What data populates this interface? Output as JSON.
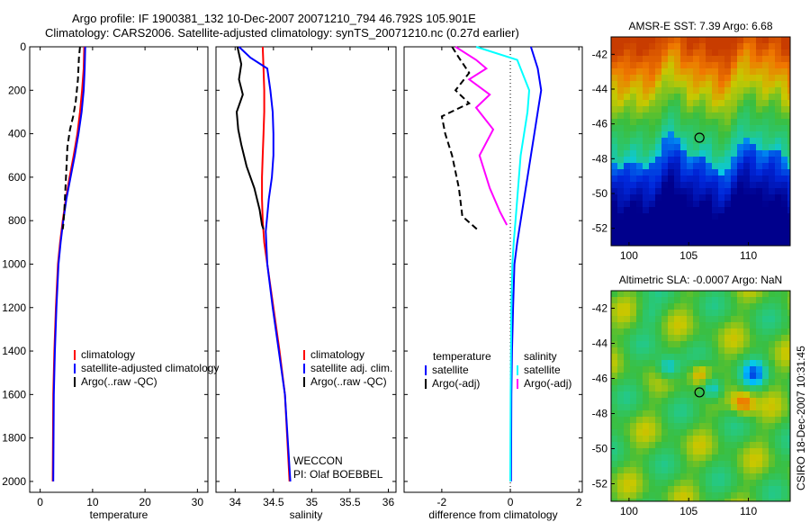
{
  "header": {
    "line1": "Argo profile: IF 1900381_132 10-Dec-2007 20071210_794 46.792S 105.901E",
    "line2": "Climatology: CARS2006. Satellite-adjusted climatology: synTS_20071210.nc (0.27d earlier)"
  },
  "side_label": "CSIRO 18-Dec-2007 10:31:45",
  "colors": {
    "climatology": "#ff0000",
    "satellite": "#0000ff",
    "argo": "#000000",
    "satellite_diff": "#00ffff",
    "argo_sal_diff": "#ff00ff"
  },
  "chart_data": [
    {
      "type": "line",
      "panel": "temperature",
      "xlabel": "temperature",
      "ylabel": "",
      "xlim": [
        -2,
        32
      ],
      "ylim": [
        2050,
        0
      ],
      "xticks": [
        0,
        10,
        20,
        30
      ],
      "yticks": [
        0,
        200,
        400,
        600,
        800,
        1000,
        1200,
        1400,
        1600,
        1800,
        2000
      ],
      "legend": [
        "climatology",
        "satellite-adjusted climatology",
        "Argo(..raw -QC)"
      ],
      "series": [
        {
          "name": "climatology",
          "x": [
            8.4,
            8.3,
            8.0,
            7.6,
            7.1,
            6.4,
            5.6,
            4.9,
            4.3,
            3.8,
            3.4,
            3.0,
            2.7,
            2.5,
            2.4
          ],
          "y": [
            0,
            100,
            200,
            300,
            400,
            500,
            600,
            700,
            800,
            900,
            1000,
            1200,
            1400,
            1600,
            2000
          ]
        },
        {
          "name": "satellite-adjusted climatology",
          "x": [
            8.6,
            8.5,
            8.3,
            7.9,
            7.3,
            6.6,
            5.8,
            5.0,
            4.4,
            3.9,
            3.5,
            3.1,
            2.8,
            2.6,
            2.5
          ],
          "y": [
            0,
            100,
            200,
            300,
            400,
            500,
            600,
            700,
            800,
            900,
            1000,
            1200,
            1400,
            1600,
            2000
          ]
        },
        {
          "name": "Argo(..raw -QC)",
          "x": [
            7.6,
            7.4,
            7.2,
            6.8,
            6.3,
            5.7,
            5.2,
            5.0,
            4.8,
            4.6,
            4.4,
            4.3
          ],
          "y": [
            0,
            50,
            150,
            250,
            320,
            380,
            460,
            560,
            660,
            760,
            820,
            840
          ]
        }
      ]
    },
    {
      "type": "line",
      "panel": "salinity",
      "xlabel": "salinity",
      "ylabel": "",
      "xlim": [
        33.75,
        36.1
      ],
      "ylim": [
        2050,
        0
      ],
      "xticks": [
        34,
        34.5,
        35,
        35.5,
        36
      ],
      "legend": [
        "climatology",
        "satellite adj. clim.",
        "Argo(..raw -QC)"
      ],
      "annotations": [
        "WECCON",
        "PI: Olaf BOEBBEL"
      ],
      "series": [
        {
          "name": "climatology",
          "x": [
            34.36,
            34.37,
            34.38,
            34.38,
            34.37,
            34.36,
            34.35,
            34.35,
            34.36,
            34.38,
            34.42,
            34.5,
            34.58,
            34.65,
            34.71
          ],
          "y": [
            0,
            100,
            200,
            300,
            400,
            500,
            600,
            700,
            800,
            900,
            1000,
            1200,
            1400,
            1600,
            2000
          ]
        },
        {
          "name": "satellite adj. clim.",
          "x": [
            34.05,
            34.2,
            34.42,
            34.46,
            34.49,
            34.5,
            34.5,
            34.48,
            34.44,
            34.4,
            34.42,
            34.49,
            34.57,
            34.65,
            34.72
          ],
          "y": [
            0,
            50,
            100,
            200,
            300,
            400,
            500,
            600,
            700,
            850,
            1000,
            1200,
            1400,
            1600,
            2000
          ]
        },
        {
          "name": "Argo(..raw -QC)",
          "x": [
            34.03,
            34.08,
            34.05,
            34.1,
            34.02,
            34.04,
            34.08,
            34.15,
            34.25,
            34.32,
            34.35,
            34.37
          ],
          "y": [
            0,
            80,
            150,
            220,
            300,
            380,
            450,
            550,
            650,
            750,
            820,
            840
          ]
        }
      ]
    },
    {
      "type": "line",
      "panel": "difference",
      "xlabel": "difference from climatology",
      "ylabel": "",
      "xlim": [
        -3.1,
        2.1
      ],
      "ylim": [
        2050,
        0
      ],
      "xticks": [
        -2,
        0,
        2
      ],
      "legend": [
        "temperature",
        "satellite",
        "Argo(-adj)",
        "salinity",
        "satellite",
        "Argo(-adj)"
      ],
      "series": [
        {
          "name": "temperature satellite",
          "x": [
            0.6,
            0.8,
            0.9,
            0.8,
            0.7,
            0.6,
            0.5,
            0.4,
            0.3,
            0.2,
            0.12,
            0.08,
            0.05,
            0.03,
            0.02
          ],
          "y": [
            0,
            100,
            200,
            300,
            400,
            500,
            600,
            700,
            800,
            900,
            1000,
            1200,
            1400,
            1600,
            2000
          ]
        },
        {
          "name": "salinity satellite",
          "x": [
            -1.0,
            0.2,
            0.55,
            0.5,
            0.4,
            0.3,
            0.25,
            0.2,
            0.15,
            0.1,
            0.06,
            0.03,
            0.02,
            0.01,
            0.0
          ],
          "y": [
            0,
            60,
            200,
            300,
            400,
            500,
            600,
            700,
            800,
            900,
            1000,
            1200,
            1400,
            1600,
            2000
          ]
        },
        {
          "name": "temperature Argo(-adj)",
          "x": [
            -1.7,
            -1.5,
            -1.2,
            -1.6,
            -1.2,
            -2.0,
            -1.9,
            -1.7,
            -1.5,
            -1.4,
            -0.9
          ],
          "y": [
            0,
            50,
            120,
            200,
            260,
            320,
            400,
            500,
            650,
            780,
            850
          ]
        },
        {
          "name": "salinity Argo(-adj)",
          "x": [
            -1.6,
            -1.0,
            -0.7,
            -1.2,
            -0.6,
            -1.0,
            -0.5,
            -0.9,
            -0.6,
            -0.3,
            -0.1
          ],
          "y": [
            0,
            60,
            100,
            150,
            220,
            280,
            380,
            500,
            650,
            760,
            820
          ]
        }
      ]
    },
    {
      "type": "heatmap",
      "panel": "sst-map",
      "title": "AMSR-E SST: 7.39 Argo: 6.68",
      "xticks": [
        100,
        105,
        110
      ],
      "yticks": [
        -42,
        -44,
        -46,
        -48,
        -50,
        -52
      ],
      "xlim": [
        98.5,
        113.5
      ],
      "ylim": [
        -53,
        -41
      ],
      "marker": {
        "lon": 105.901,
        "lat": -46.792
      }
    },
    {
      "type": "heatmap",
      "panel": "sla-map",
      "title": "Altimetric SLA: -0.0007 Argo: NaN",
      "xticks": [
        100,
        105,
        110
      ],
      "yticks": [
        -42,
        -44,
        -46,
        -48,
        -50,
        -52
      ],
      "xlim": [
        98.5,
        113.5
      ],
      "ylim": [
        -53,
        -41
      ],
      "marker": {
        "lon": 105.901,
        "lat": -46.792
      }
    }
  ]
}
